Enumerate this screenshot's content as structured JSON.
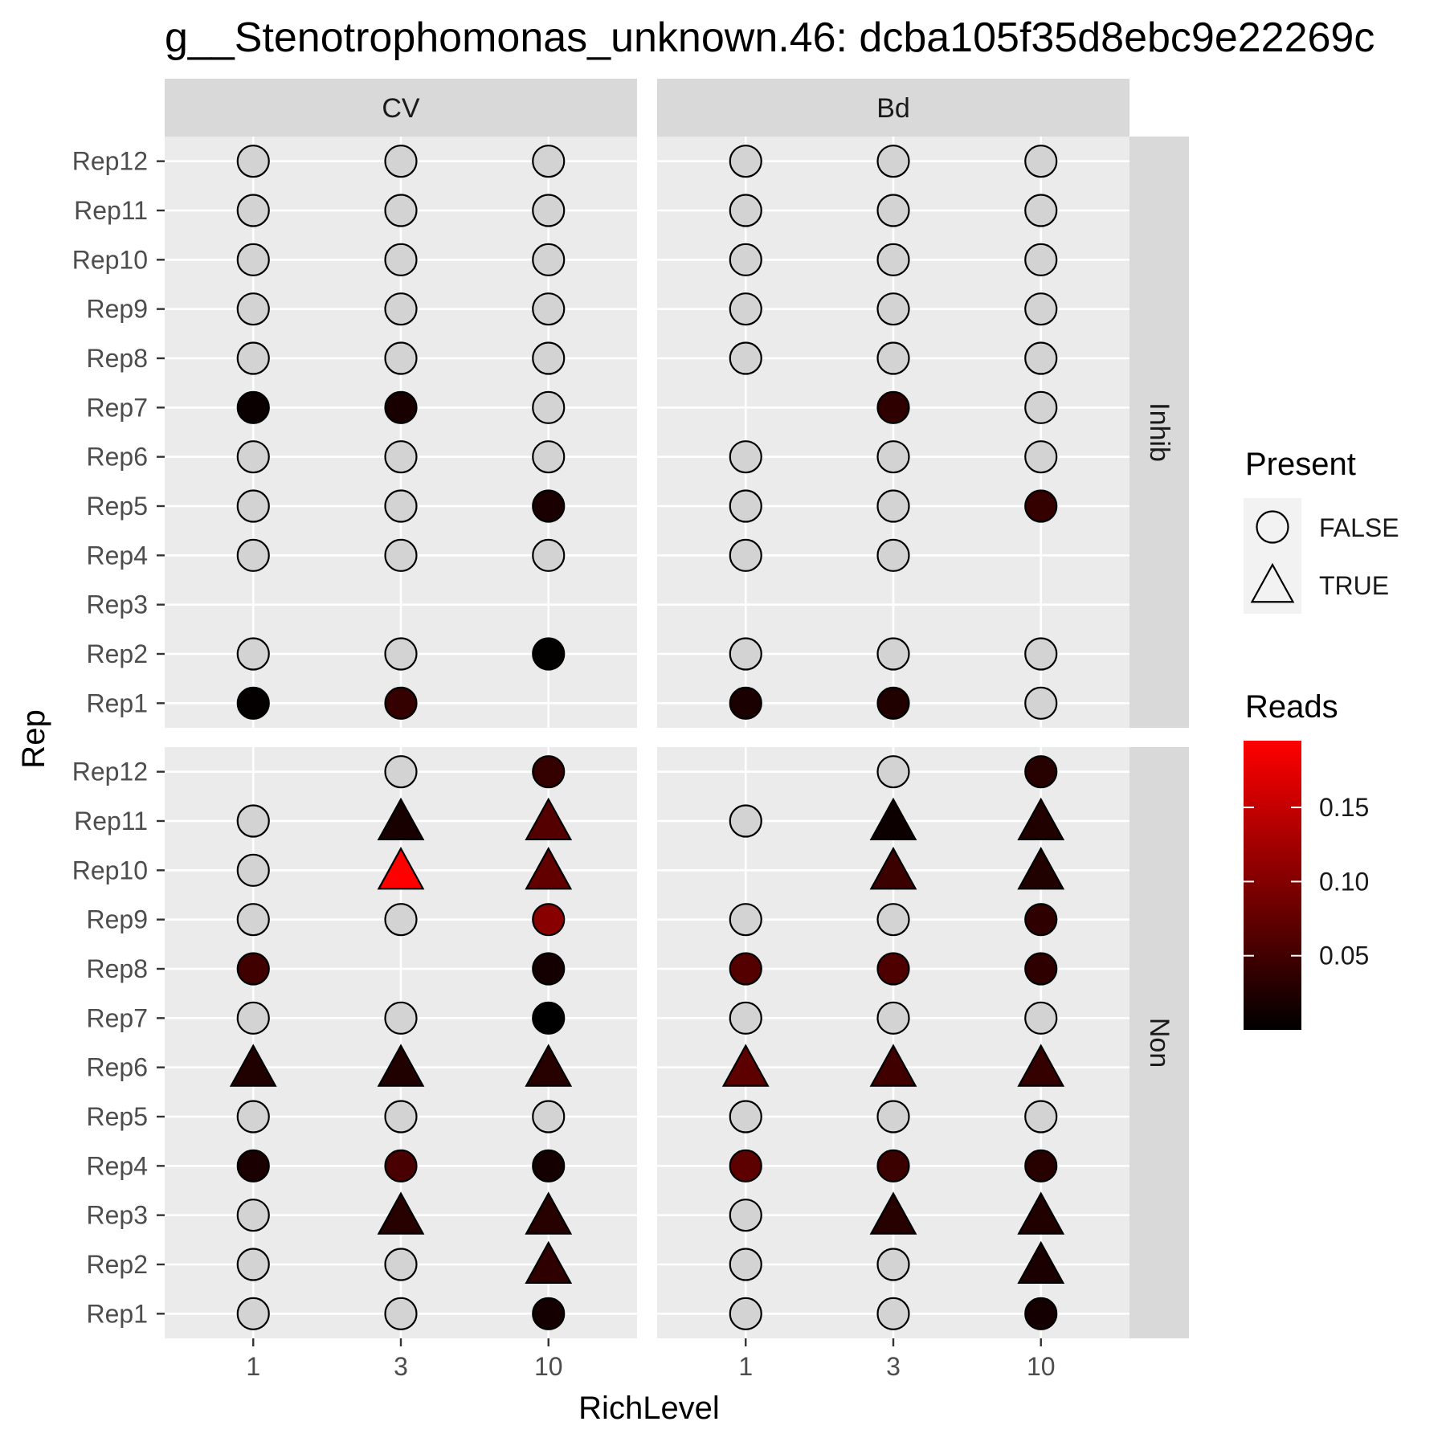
{
  "chart_data": {
    "type": "scatter",
    "title": "g__Stenotrophomonas_unknown.46: dcba105f35d8ebc9e22269c",
    "xlabel": "RichLevel",
    "ylabel": "Rep",
    "x_categories": [
      "1",
      "3",
      "10"
    ],
    "y_categories": [
      "Rep1",
      "Rep2",
      "Rep3",
      "Rep4",
      "Rep5",
      "Rep6",
      "Rep7",
      "Rep8",
      "Rep9",
      "Rep10",
      "Rep11",
      "Rep12"
    ],
    "facet_columns": [
      "CV",
      "Bd"
    ],
    "facet_rows": [
      "Inhib",
      "Non"
    ],
    "colors": {
      "panel_bg": "#ebebeb",
      "strip_bg": "#d9d9d9",
      "grid": "#ffffff",
      "absent_fill": "#d3d3d3",
      "scale_low": "#000000",
      "scale_high": "#ff0000"
    },
    "legend_present": {
      "title": "Present",
      "items": [
        {
          "label": "FALSE",
          "shape": "circle"
        },
        {
          "label": "TRUE",
          "shape": "triangle"
        }
      ]
    },
    "legend_reads": {
      "title": "Reads",
      "min": 0,
      "max": 0.195,
      "ticks": [
        0.05,
        0.1,
        0.15
      ],
      "tick_labels": [
        "0.05",
        "0.10",
        "0.15"
      ]
    },
    "panels": [
      {
        "facet_col": "CV",
        "facet_row": "Inhib",
        "points": [
          {
            "x": "1",
            "y": "Rep12",
            "present": false,
            "reads": 0
          },
          {
            "x": "3",
            "y": "Rep12",
            "present": false,
            "reads": 0
          },
          {
            "x": "10",
            "y": "Rep12",
            "present": false,
            "reads": 0
          },
          {
            "x": "1",
            "y": "Rep11",
            "present": false,
            "reads": 0
          },
          {
            "x": "3",
            "y": "Rep11",
            "present": false,
            "reads": 0
          },
          {
            "x": "10",
            "y": "Rep11",
            "present": false,
            "reads": 0
          },
          {
            "x": "1",
            "y": "Rep10",
            "present": false,
            "reads": 0
          },
          {
            "x": "3",
            "y": "Rep10",
            "present": false,
            "reads": 0
          },
          {
            "x": "10",
            "y": "Rep10",
            "present": false,
            "reads": 0
          },
          {
            "x": "1",
            "y": "Rep9",
            "present": false,
            "reads": 0
          },
          {
            "x": "3",
            "y": "Rep9",
            "present": false,
            "reads": 0
          },
          {
            "x": "10",
            "y": "Rep9",
            "present": false,
            "reads": 0
          },
          {
            "x": "1",
            "y": "Rep8",
            "present": false,
            "reads": 0
          },
          {
            "x": "3",
            "y": "Rep8",
            "present": false,
            "reads": 0
          },
          {
            "x": "10",
            "y": "Rep8",
            "present": false,
            "reads": 0
          },
          {
            "x": "1",
            "y": "Rep7",
            "present": false,
            "reads": 0.008
          },
          {
            "x": "3",
            "y": "Rep7",
            "present": false,
            "reads": 0.018
          },
          {
            "x": "10",
            "y": "Rep7",
            "present": false,
            "reads": 0
          },
          {
            "x": "1",
            "y": "Rep6",
            "present": false,
            "reads": 0
          },
          {
            "x": "3",
            "y": "Rep6",
            "present": false,
            "reads": 0
          },
          {
            "x": "10",
            "y": "Rep6",
            "present": false,
            "reads": 0
          },
          {
            "x": "1",
            "y": "Rep5",
            "present": false,
            "reads": 0
          },
          {
            "x": "3",
            "y": "Rep5",
            "present": false,
            "reads": 0
          },
          {
            "x": "10",
            "y": "Rep5",
            "present": false,
            "reads": 0.02
          },
          {
            "x": "1",
            "y": "Rep4",
            "present": false,
            "reads": 0
          },
          {
            "x": "3",
            "y": "Rep4",
            "present": false,
            "reads": 0
          },
          {
            "x": "10",
            "y": "Rep4",
            "present": false,
            "reads": 0
          },
          {
            "x": "1",
            "y": "Rep2",
            "present": false,
            "reads": 0
          },
          {
            "x": "3",
            "y": "Rep2",
            "present": false,
            "reads": 0
          },
          {
            "x": "10",
            "y": "Rep2",
            "present": false,
            "reads": 0.002
          },
          {
            "x": "1",
            "y": "Rep1",
            "present": false,
            "reads": 0.003
          },
          {
            "x": "3",
            "y": "Rep1",
            "present": false,
            "reads": 0.04
          }
        ]
      },
      {
        "facet_col": "Bd",
        "facet_row": "Inhib",
        "points": [
          {
            "x": "1",
            "y": "Rep12",
            "present": false,
            "reads": 0
          },
          {
            "x": "3",
            "y": "Rep12",
            "present": false,
            "reads": 0
          },
          {
            "x": "10",
            "y": "Rep12",
            "present": false,
            "reads": 0
          },
          {
            "x": "1",
            "y": "Rep11",
            "present": false,
            "reads": 0
          },
          {
            "x": "3",
            "y": "Rep11",
            "present": false,
            "reads": 0
          },
          {
            "x": "10",
            "y": "Rep11",
            "present": false,
            "reads": 0
          },
          {
            "x": "1",
            "y": "Rep10",
            "present": false,
            "reads": 0
          },
          {
            "x": "3",
            "y": "Rep10",
            "present": false,
            "reads": 0
          },
          {
            "x": "10",
            "y": "Rep10",
            "present": false,
            "reads": 0
          },
          {
            "x": "1",
            "y": "Rep9",
            "present": false,
            "reads": 0
          },
          {
            "x": "3",
            "y": "Rep9",
            "present": false,
            "reads": 0
          },
          {
            "x": "10",
            "y": "Rep9",
            "present": false,
            "reads": 0
          },
          {
            "x": "1",
            "y": "Rep8",
            "present": false,
            "reads": 0
          },
          {
            "x": "3",
            "y": "Rep8",
            "present": false,
            "reads": 0
          },
          {
            "x": "10",
            "y": "Rep8",
            "present": false,
            "reads": 0
          },
          {
            "x": "3",
            "y": "Rep7",
            "present": false,
            "reads": 0.035
          },
          {
            "x": "10",
            "y": "Rep7",
            "present": false,
            "reads": 0
          },
          {
            "x": "1",
            "y": "Rep6",
            "present": false,
            "reads": 0
          },
          {
            "x": "3",
            "y": "Rep6",
            "present": false,
            "reads": 0
          },
          {
            "x": "10",
            "y": "Rep6",
            "present": false,
            "reads": 0
          },
          {
            "x": "1",
            "y": "Rep5",
            "present": false,
            "reads": 0
          },
          {
            "x": "3",
            "y": "Rep5",
            "present": false,
            "reads": 0
          },
          {
            "x": "10",
            "y": "Rep5",
            "present": false,
            "reads": 0.04
          },
          {
            "x": "1",
            "y": "Rep4",
            "present": false,
            "reads": 0
          },
          {
            "x": "3",
            "y": "Rep4",
            "present": false,
            "reads": 0
          },
          {
            "x": "1",
            "y": "Rep2",
            "present": false,
            "reads": 0
          },
          {
            "x": "3",
            "y": "Rep2",
            "present": false,
            "reads": 0
          },
          {
            "x": "10",
            "y": "Rep2",
            "present": false,
            "reads": 0
          },
          {
            "x": "1",
            "y": "Rep1",
            "present": false,
            "reads": 0.02
          },
          {
            "x": "3",
            "y": "Rep1",
            "present": false,
            "reads": 0.025
          },
          {
            "x": "10",
            "y": "Rep1",
            "present": false,
            "reads": 0
          }
        ]
      },
      {
        "facet_col": "CV",
        "facet_row": "Non",
        "points": [
          {
            "x": "3",
            "y": "Rep12",
            "present": false,
            "reads": 0
          },
          {
            "x": "10",
            "y": "Rep12",
            "present": false,
            "reads": 0.04
          },
          {
            "x": "1",
            "y": "Rep11",
            "present": false,
            "reads": 0
          },
          {
            "x": "3",
            "y": "Rep11",
            "present": true,
            "reads": 0.018
          },
          {
            "x": "10",
            "y": "Rep11",
            "present": true,
            "reads": 0.065
          },
          {
            "x": "1",
            "y": "Rep10",
            "present": false,
            "reads": 0
          },
          {
            "x": "3",
            "y": "Rep10",
            "present": true,
            "reads": 0.195
          },
          {
            "x": "10",
            "y": "Rep10",
            "present": true,
            "reads": 0.075
          },
          {
            "x": "1",
            "y": "Rep9",
            "present": false,
            "reads": 0
          },
          {
            "x": "3",
            "y": "Rep9",
            "present": false,
            "reads": 0
          },
          {
            "x": "10",
            "y": "Rep9",
            "present": false,
            "reads": 0.105
          },
          {
            "x": "1",
            "y": "Rep8",
            "present": false,
            "reads": 0.05
          },
          {
            "x": "10",
            "y": "Rep8",
            "present": false,
            "reads": 0.015
          },
          {
            "x": "1",
            "y": "Rep7",
            "present": false,
            "reads": 0
          },
          {
            "x": "3",
            "y": "Rep7",
            "present": false,
            "reads": 0
          },
          {
            "x": "10",
            "y": "Rep7",
            "present": false,
            "reads": 0.001
          },
          {
            "x": "1",
            "y": "Rep6",
            "present": true,
            "reads": 0.025
          },
          {
            "x": "3",
            "y": "Rep6",
            "present": true,
            "reads": 0.025
          },
          {
            "x": "10",
            "y": "Rep6",
            "present": true,
            "reads": 0.03
          },
          {
            "x": "1",
            "y": "Rep5",
            "present": false,
            "reads": 0
          },
          {
            "x": "3",
            "y": "Rep5",
            "present": false,
            "reads": 0
          },
          {
            "x": "10",
            "y": "Rep5",
            "present": false,
            "reads": 0
          },
          {
            "x": "1",
            "y": "Rep4",
            "present": false,
            "reads": 0.02
          },
          {
            "x": "3",
            "y": "Rep4",
            "present": false,
            "reads": 0.055
          },
          {
            "x": "10",
            "y": "Rep4",
            "present": false,
            "reads": 0.015
          },
          {
            "x": "1",
            "y": "Rep3",
            "present": false,
            "reads": 0
          },
          {
            "x": "3",
            "y": "Rep3",
            "present": true,
            "reads": 0.03
          },
          {
            "x": "10",
            "y": "Rep3",
            "present": true,
            "reads": 0.03
          },
          {
            "x": "1",
            "y": "Rep2",
            "present": false,
            "reads": 0
          },
          {
            "x": "3",
            "y": "Rep2",
            "present": false,
            "reads": 0
          },
          {
            "x": "10",
            "y": "Rep2",
            "present": true,
            "reads": 0.035
          },
          {
            "x": "1",
            "y": "Rep1",
            "present": false,
            "reads": 0
          },
          {
            "x": "3",
            "y": "Rep1",
            "present": false,
            "reads": 0
          },
          {
            "x": "10",
            "y": "Rep1",
            "present": false,
            "reads": 0.015
          }
        ]
      },
      {
        "facet_col": "Bd",
        "facet_row": "Non",
        "points": [
          {
            "x": "3",
            "y": "Rep12",
            "present": false,
            "reads": 0
          },
          {
            "x": "10",
            "y": "Rep12",
            "present": false,
            "reads": 0.03
          },
          {
            "x": "1",
            "y": "Rep11",
            "present": false,
            "reads": 0
          },
          {
            "x": "3",
            "y": "Rep11",
            "present": true,
            "reads": 0.01
          },
          {
            "x": "10",
            "y": "Rep11",
            "present": true,
            "reads": 0.025
          },
          {
            "x": "3",
            "y": "Rep10",
            "present": true,
            "reads": 0.045
          },
          {
            "x": "10",
            "y": "Rep10",
            "present": true,
            "reads": 0.025
          },
          {
            "x": "1",
            "y": "Rep9",
            "present": false,
            "reads": 0
          },
          {
            "x": "3",
            "y": "Rep9",
            "present": false,
            "reads": 0
          },
          {
            "x": "10",
            "y": "Rep9",
            "present": false,
            "reads": 0.035
          },
          {
            "x": "1",
            "y": "Rep8",
            "present": false,
            "reads": 0.065
          },
          {
            "x": "3",
            "y": "Rep8",
            "present": false,
            "reads": 0.06
          },
          {
            "x": "10",
            "y": "Rep8",
            "present": false,
            "reads": 0.035
          },
          {
            "x": "1",
            "y": "Rep7",
            "present": false,
            "reads": 0
          },
          {
            "x": "3",
            "y": "Rep7",
            "present": false,
            "reads": 0
          },
          {
            "x": "10",
            "y": "Rep7",
            "present": false,
            "reads": 0
          },
          {
            "x": "1",
            "y": "Rep6",
            "present": true,
            "reads": 0.07
          },
          {
            "x": "3",
            "y": "Rep6",
            "present": true,
            "reads": 0.05
          },
          {
            "x": "10",
            "y": "Rep6",
            "present": true,
            "reads": 0.04
          },
          {
            "x": "1",
            "y": "Rep5",
            "present": false,
            "reads": 0
          },
          {
            "x": "3",
            "y": "Rep5",
            "present": false,
            "reads": 0
          },
          {
            "x": "10",
            "y": "Rep5",
            "present": false,
            "reads": 0
          },
          {
            "x": "1",
            "y": "Rep4",
            "present": false,
            "reads": 0.07
          },
          {
            "x": "3",
            "y": "Rep4",
            "present": false,
            "reads": 0.045
          },
          {
            "x": "10",
            "y": "Rep4",
            "present": false,
            "reads": 0.03
          },
          {
            "x": "1",
            "y": "Rep3",
            "present": false,
            "reads": 0
          },
          {
            "x": "3",
            "y": "Rep3",
            "present": true,
            "reads": 0.03
          },
          {
            "x": "10",
            "y": "Rep3",
            "present": true,
            "reads": 0.025
          },
          {
            "x": "1",
            "y": "Rep2",
            "present": false,
            "reads": 0
          },
          {
            "x": "3",
            "y": "Rep2",
            "present": false,
            "reads": 0
          },
          {
            "x": "10",
            "y": "Rep2",
            "present": true,
            "reads": 0.02
          },
          {
            "x": "1",
            "y": "Rep1",
            "present": false,
            "reads": 0
          },
          {
            "x": "3",
            "y": "Rep1",
            "present": false,
            "reads": 0
          },
          {
            "x": "10",
            "y": "Rep1",
            "present": false,
            "reads": 0.015
          }
        ]
      }
    ]
  }
}
